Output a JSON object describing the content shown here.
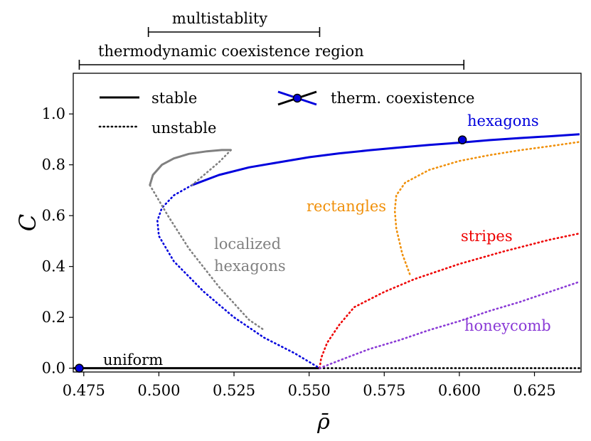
{
  "chart_data": {
    "type": "line",
    "xlabel": "ρ̄",
    "ylabel": "C",
    "xlim": [
      0.4715,
      0.6405
    ],
    "ylim": [
      -0.015,
      1.16
    ],
    "xticks": [
      0.475,
      0.5,
      0.525,
      0.55,
      0.575,
      0.6,
      0.625
    ],
    "xtick_labels": [
      "0.475",
      "0.500",
      "0.525",
      "0.550",
      "0.575",
      "0.600",
      "0.625"
    ],
    "yticks": [
      0.0,
      0.2,
      0.4,
      0.6,
      0.8,
      1.0
    ],
    "ytick_labels": [
      "0.0",
      "0.2",
      "0.4",
      "0.6",
      "0.8",
      "1.0"
    ],
    "colors": {
      "uniform": "#000000",
      "hexagons": "#0000dd",
      "localized_hexagons": "#808080",
      "rectangles": "#f0900a",
      "stripes": "#ee0000",
      "honeycomb": "#8a3ad6",
      "marker": "#0000dd"
    },
    "legend": {
      "stable": "stable",
      "unstable": "unstable",
      "coexistence": "therm. coexistence"
    },
    "annotations": {
      "multistability": "multistablity",
      "multistability_range": [
        0.4965,
        0.5535
      ],
      "coexistence_region": "thermodynamic coexistence region",
      "coexistence_range": [
        0.4735,
        0.6015
      ]
    },
    "series": [
      {
        "name": "uniform",
        "label": "uniform",
        "stable": {
          "x": [
            0.4715,
            0.5535
          ],
          "y": [
            0.0,
            0.0
          ]
        },
        "unstable": {
          "x": [
            0.5535,
            0.6405
          ],
          "y": [
            0.0,
            0.0
          ]
        }
      },
      {
        "name": "hexagons",
        "label": "hexagons",
        "stable": {
          "x": [
            0.511,
            0.52,
            0.53,
            0.54,
            0.55,
            0.56,
            0.57,
            0.58,
            0.59,
            0.6,
            0.61,
            0.62,
            0.63,
            0.64
          ],
          "y": [
            0.72,
            0.76,
            0.79,
            0.81,
            0.83,
            0.845,
            0.857,
            0.868,
            0.878,
            0.887,
            0.897,
            0.905,
            0.912,
            0.92
          ]
        },
        "unstable": {
          "x": [
            0.511,
            0.505,
            0.501,
            0.4995,
            0.5,
            0.505,
            0.515,
            0.525,
            0.535,
            0.545,
            0.5535
          ],
          "y": [
            0.72,
            0.68,
            0.63,
            0.58,
            0.52,
            0.42,
            0.3,
            0.2,
            0.12,
            0.06,
            0.0
          ]
        }
      },
      {
        "name": "localized hexagons",
        "label": "localized\nhexagons",
        "stable": {
          "x": [
            0.497,
            0.498,
            0.501,
            0.505,
            0.51,
            0.516,
            0.521,
            0.524
          ],
          "y": [
            0.72,
            0.76,
            0.8,
            0.825,
            0.843,
            0.853,
            0.858,
            0.858
          ]
        },
        "unstable_upper": {
          "x": [
            0.524,
            0.52,
            0.515,
            0.511
          ],
          "y": [
            0.858,
            0.81,
            0.76,
            0.72
          ]
        },
        "unstable_lower": {
          "x": [
            0.497,
            0.503,
            0.51,
            0.52,
            0.53,
            0.535
          ],
          "y": [
            0.72,
            0.6,
            0.47,
            0.32,
            0.19,
            0.15
          ]
        }
      },
      {
        "name": "rectangles",
        "label": "rectangles",
        "unstable": {
          "x": [
            0.5835,
            0.581,
            0.579,
            0.5785,
            0.579,
            0.582,
            0.59,
            0.6,
            0.61,
            0.62,
            0.63,
            0.64
          ],
          "y": [
            0.37,
            0.45,
            0.55,
            0.62,
            0.68,
            0.73,
            0.78,
            0.815,
            0.838,
            0.857,
            0.873,
            0.89
          ]
        }
      },
      {
        "name": "stripes",
        "label": "stripes",
        "unstable": {
          "x": [
            0.5535,
            0.554,
            0.556,
            0.56,
            0.565,
            0.575,
            0.585,
            0.6,
            0.615,
            0.63,
            0.64
          ],
          "y": [
            0.0,
            0.04,
            0.1,
            0.17,
            0.24,
            0.3,
            0.35,
            0.41,
            0.46,
            0.505,
            0.53
          ]
        }
      },
      {
        "name": "honeycomb",
        "label": "honeycomb",
        "unstable": {
          "x": [
            0.5535,
            0.56,
            0.57,
            0.58,
            0.59,
            0.6,
            0.61,
            0.62,
            0.63,
            0.64
          ],
          "y": [
            0.0,
            0.03,
            0.075,
            0.11,
            0.15,
            0.185,
            0.225,
            0.26,
            0.3,
            0.34
          ]
        }
      }
    ],
    "coexistence_points": [
      {
        "x": 0.4735,
        "y": 0.0
      },
      {
        "x": 0.601,
        "y": 0.898
      }
    ]
  }
}
